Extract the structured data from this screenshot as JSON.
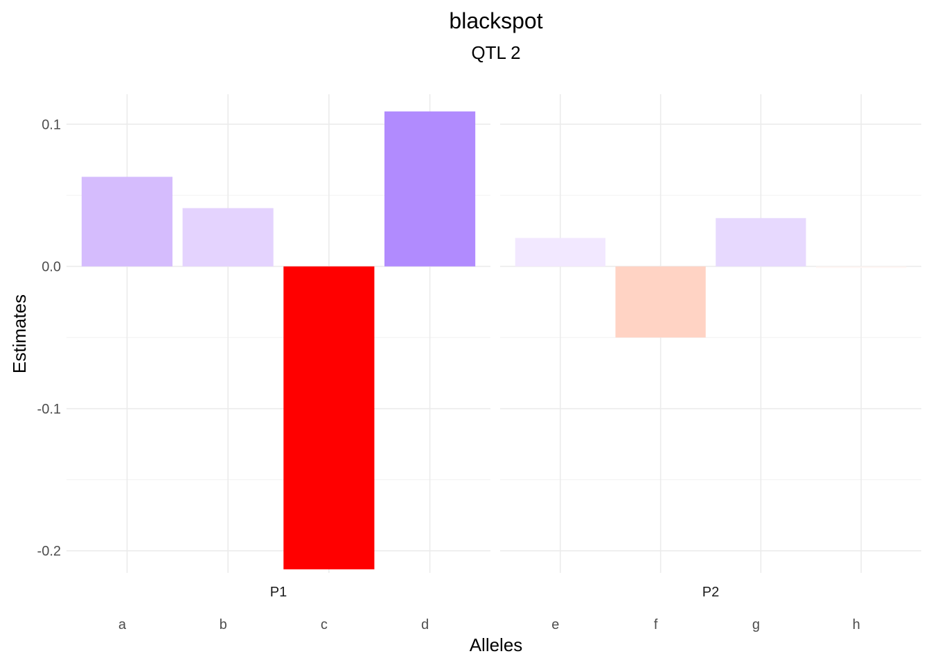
{
  "chart_data": {
    "type": "bar",
    "title": "blackspot",
    "subtitle": "QTL 2",
    "xlabel": "Alleles",
    "ylabel": "Estimates",
    "ylim": [
      -0.2155,
      0.1211
    ],
    "yticks": [
      -0.2,
      -0.1,
      0.0,
      0.1
    ],
    "ytick_labels": [
      "-0.2",
      "-0.1",
      "0.0",
      "0.1"
    ],
    "grid": true,
    "legend": "none",
    "panels": [
      {
        "name": "P1",
        "categories": [
          "a",
          "b",
          "c",
          "d"
        ],
        "values": [
          0.063,
          0.041,
          -0.213,
          0.109
        ],
        "colors": [
          "#d5bcfd",
          "#e4d3fe",
          "#ff0000",
          "#b18bfe"
        ]
      },
      {
        "name": "P2",
        "categories": [
          "e",
          "f",
          "g",
          "h"
        ],
        "values": [
          0.02,
          -0.05,
          0.034,
          -0.001
        ],
        "colors": [
          "#f2e8ff",
          "#ffd3c4",
          "#e7d9fe",
          "#fff5f2"
        ]
      }
    ]
  }
}
